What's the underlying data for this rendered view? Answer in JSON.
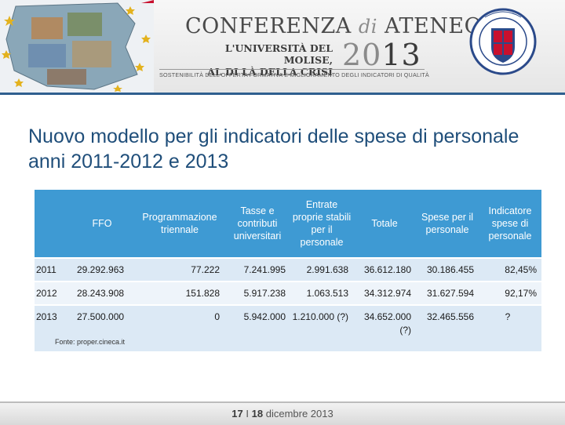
{
  "header": {
    "title_main": "CONFERENZA",
    "title_di": "di",
    "title_end": "ATENEO",
    "subtitle_line1": "L'UNIVERSITÀ DEL MOLISE,",
    "subtitle_line2": "AL DI LÀ DELLA CRISI",
    "year_a": "20",
    "year_b": "13",
    "tagline": "SOSTENIBILITÀ DELL'OFFERTA FORMATIVA E MIGLIORAMENTO DEGLI INDICATORI DI QUALITÀ",
    "seal_text": "UNIVERSITÀ DEGLI STUDI DEL MOLISE"
  },
  "slide": {
    "title": "Nuovo modello per gli indicatori delle spese di personale anni 2011-2012 e 2013"
  },
  "table": {
    "headers": [
      "FFO",
      "Programmazione triennale",
      "Tasse e contributi universitari",
      "Entrate proprie stabili per il personale",
      "Totale",
      "Spese per il personale",
      "Indicatore spese di personale"
    ],
    "rows": [
      {
        "year": "2011",
        "cells": [
          "29.292.963",
          "77.222",
          "7.241.995",
          "2.991.638",
          "36.612.180",
          "30.186.455",
          "82,45%"
        ]
      },
      {
        "year": "2012",
        "cells": [
          "28.243.908",
          "151.828",
          "5.917.238",
          "1.063.513",
          "34.312.974",
          "31.627.594",
          "92,17%"
        ]
      },
      {
        "year": "2013",
        "cells": [
          "27.500.000",
          "0",
          "5.942.000",
          "1.210.000 (?)",
          "34.652.000 (?)",
          "32.465.556",
          "?"
        ]
      }
    ]
  },
  "source": "Fonte: proper.cineca.it",
  "footer": {
    "day1": "17",
    "sep": "I",
    "day2": "18",
    "month_year": "dicembre 2013"
  },
  "colors": {
    "title": "#1f4e7a",
    "header_bg": "#3e9ad3",
    "row_bg": "#dce9f5"
  }
}
